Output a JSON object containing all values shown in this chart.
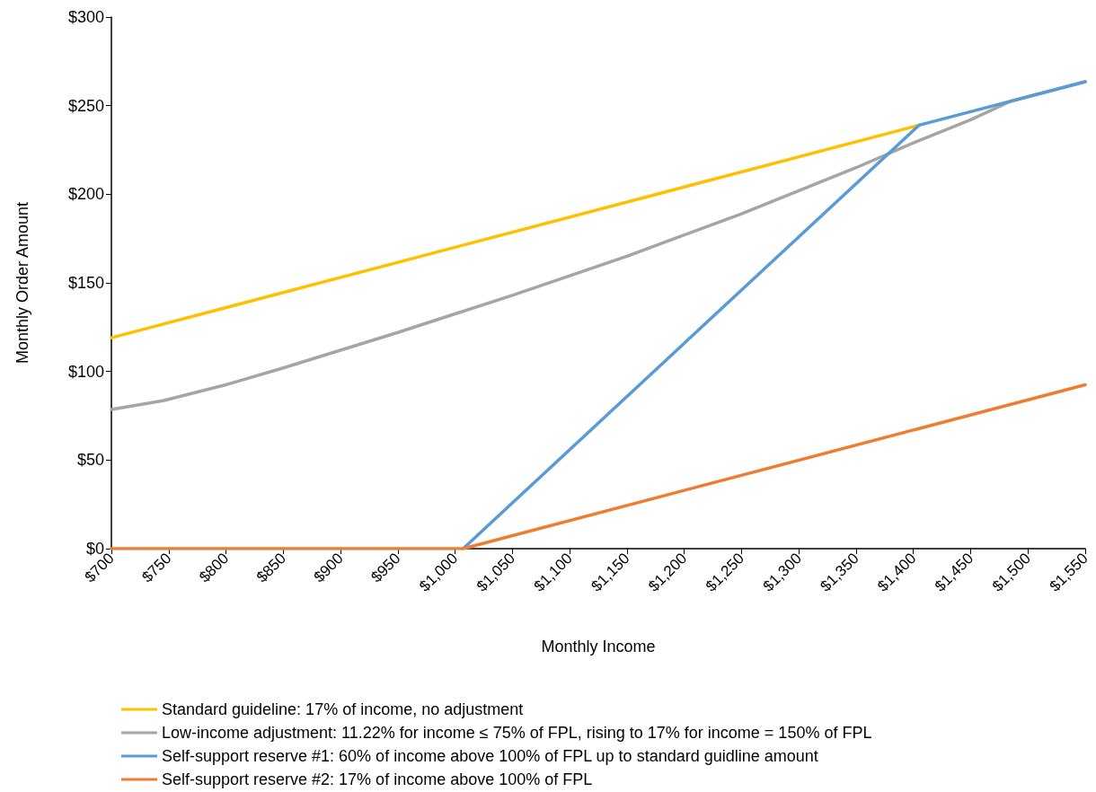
{
  "chart_data": {
    "type": "line",
    "xlabel": "Monthly Income",
    "ylabel": "Monthly Order Amount",
    "xlim": [
      700,
      1550
    ],
    "xticks": [
      {
        "value": 700,
        "label": "$700"
      },
      {
        "value": 750,
        "label": "$750"
      },
      {
        "value": 800,
        "label": "$800"
      },
      {
        "value": 850,
        "label": "$850"
      },
      {
        "value": 900,
        "label": "$900"
      },
      {
        "value": 950,
        "label": "$950"
      },
      {
        "value": 1000,
        "label": "$1,000"
      },
      {
        "value": 1050,
        "label": "$1,050"
      },
      {
        "value": 1100,
        "label": "$1,100"
      },
      {
        "value": 1150,
        "label": "$1,150"
      },
      {
        "value": 1200,
        "label": "$1,200"
      },
      {
        "value": 1250,
        "label": "$1,250"
      },
      {
        "value": 1300,
        "label": "$1,300"
      },
      {
        "value": 1350,
        "label": "$1,350"
      },
      {
        "value": 1400,
        "label": "$1,400"
      },
      {
        "value": 1450,
        "label": "$1,450"
      },
      {
        "value": 1500,
        "label": "$1,500"
      },
      {
        "value": 1550,
        "label": "$1,550"
      }
    ],
    "ylim": [
      0,
      300
    ],
    "yticks": [
      {
        "value": 0,
        "label": "$0"
      },
      {
        "value": 50,
        "label": "$50"
      },
      {
        "value": 100,
        "label": "$100"
      },
      {
        "value": 150,
        "label": "$150"
      },
      {
        "value": 200,
        "label": "$200"
      },
      {
        "value": 250,
        "label": "$250"
      },
      {
        "value": 300,
        "label": "$300"
      }
    ],
    "grid": false,
    "legend": "bottom",
    "marker": "none",
    "line_style": "solid",
    "series": [
      {
        "name": "Standard guideline: 17% of income, no adjustment",
        "color": "#ffc000",
        "x": [
          700,
          1405
        ],
        "values": [
          119,
          239
        ]
      },
      {
        "name": "Low-income adjustment: 11.22% for income ≤ 75% of FPL, rising to 17% for income = 150% of FPL",
        "color": "#a5a5a5",
        "x": [
          700,
          745,
          800,
          850,
          900,
          950,
          1000,
          1050,
          1100,
          1150,
          1200,
          1250,
          1300,
          1350,
          1400,
          1450,
          1485,
          1550
        ],
        "values": [
          78.5,
          83.5,
          92.5,
          102,
          112,
          122,
          132.5,
          143,
          154,
          165,
          177,
          189,
          202,
          215,
          229,
          242,
          252.5,
          263.5
        ]
      },
      {
        "name": "Self-support reserve #1: 60% of income above 100% of FPL up to standard guidline amount",
        "color": "#5b9bd5",
        "x": [
          1007,
          1405,
          1550
        ],
        "values": [
          0,
          239,
          263.5
        ]
      },
      {
        "name": "Self-support reserve #2: 17% of income above 100% of FPL",
        "color": "#ed7d31",
        "x": [
          700,
          1007,
          1550
        ],
        "values": [
          0,
          0,
          92.5
        ]
      }
    ]
  }
}
